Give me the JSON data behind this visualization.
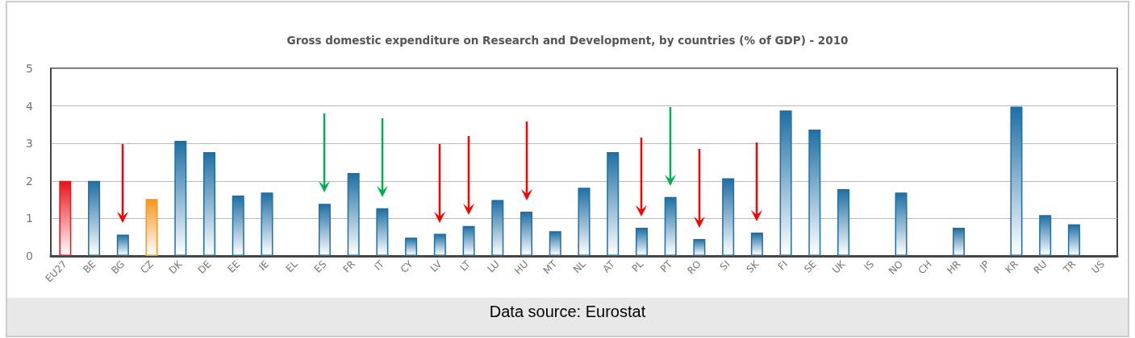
{
  "chart_data": {
    "type": "bar",
    "title": "Gross domestic expenditure on Research and Development, by countries (% of GDP) - 2010",
    "categories": [
      "EU27",
      "BE",
      "BG",
      "CZ",
      "DK",
      "DE",
      "EE",
      "IE",
      "EL",
      "ES",
      "FR",
      "IT",
      "CY",
      "LV",
      "LT",
      "LU",
      "HU",
      "MT",
      "NL",
      "AT",
      "PL",
      "PT",
      "RO",
      "SI",
      "SK",
      "FI",
      "SE",
      "UK",
      "IS",
      "NO",
      "CH",
      "HR",
      "JP",
      "KR",
      "RU",
      "TR",
      "US"
    ],
    "values": [
      2.0,
      2.0,
      0.57,
      1.52,
      3.07,
      2.77,
      1.61,
      1.69,
      null,
      1.39,
      2.21,
      1.27,
      0.49,
      0.59,
      0.8,
      1.49,
      1.18,
      0.66,
      1.82,
      2.77,
      0.75,
      1.57,
      0.45,
      2.07,
      0.62,
      3.88,
      3.37,
      1.78,
      null,
      1.69,
      null,
      0.75,
      null,
      3.98,
      1.09,
      0.84,
      null
    ],
    "colors": [
      "#e8141c",
      "#1f6fa5",
      "#1f6fa5",
      "#f5961e",
      "#1f6fa5",
      "#1f6fa5",
      "#1f6fa5",
      "#1f6fa5",
      "#1f6fa5",
      "#1f6fa5",
      "#1f6fa5",
      "#1f6fa5",
      "#1f6fa5",
      "#1f6fa5",
      "#1f6fa5",
      "#1f6fa5",
      "#1f6fa5",
      "#1f6fa5",
      "#1f6fa5",
      "#1f6fa5",
      "#1f6fa5",
      "#1f6fa5",
      "#1f6fa5",
      "#1f6fa5",
      "#1f6fa5",
      "#1f6fa5",
      "#1f6fa5",
      "#1f6fa5",
      "#1f6fa5",
      "#1f6fa5",
      "#1f6fa5",
      "#1f6fa5",
      "#1f6fa5",
      "#1f6fa5",
      "#1f6fa5",
      "#1f6fa5",
      "#1f6fa5"
    ],
    "ylim": [
      0,
      5
    ],
    "yticks": [
      0,
      1,
      2,
      3,
      4,
      5
    ],
    "grid": "y",
    "annotations": [
      "Data source: Eurostat"
    ]
  }
}
